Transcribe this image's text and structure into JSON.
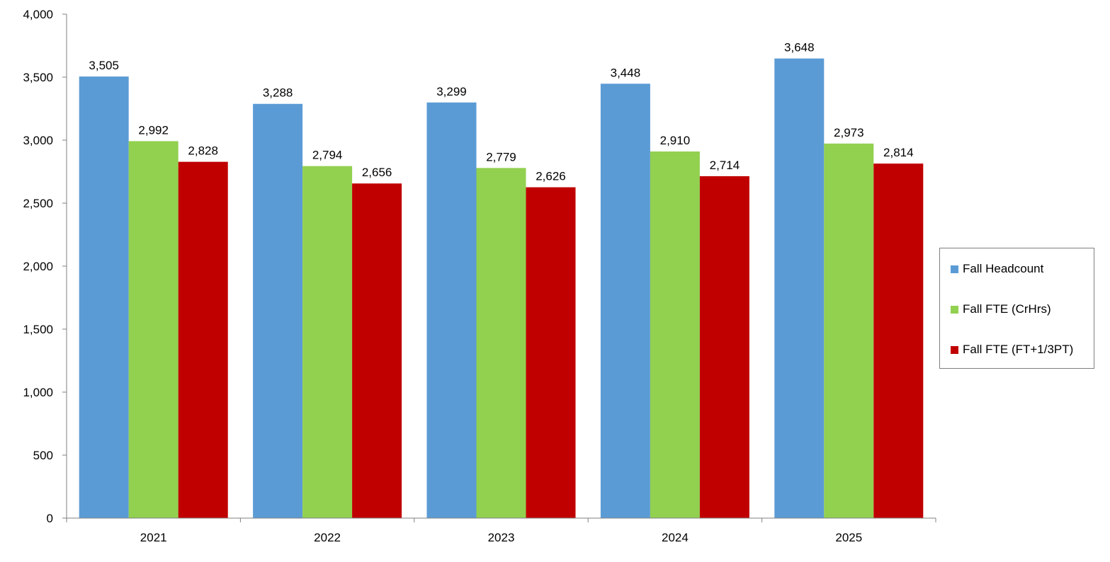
{
  "chart_data": {
    "type": "bar",
    "categories": [
      "2021",
      "2022",
      "2023",
      "2024",
      "2025"
    ],
    "series": [
      {
        "name": "Fall Headcount",
        "color": "#5b9bd5",
        "values": [
          3505,
          3288,
          3299,
          3448,
          3648
        ],
        "labels": [
          "3,505",
          "3,288",
          "3,299",
          "3,448",
          "3,648"
        ]
      },
      {
        "name": "Fall FTE (CrHrs)",
        "color": "#92d050",
        "values": [
          2992,
          2794,
          2779,
          2910,
          2973
        ],
        "labels": [
          "2,992",
          "2,794",
          "2,779",
          "2,910",
          "2,973"
        ]
      },
      {
        "name": "Fall FTE (FT+1/3PT)",
        "color": "#c00000",
        "values": [
          2828,
          2656,
          2626,
          2714,
          2814
        ],
        "labels": [
          "2,828",
          "2,656",
          "2,626",
          "2,714",
          "2,814"
        ]
      }
    ],
    "ylim": [
      0,
      4000
    ],
    "yticks": [
      0,
      500,
      1000,
      1500,
      2000,
      2500,
      3000,
      3500,
      4000
    ],
    "ytick_labels": [
      "0",
      "500",
      "1,000",
      "1,500",
      "2,000",
      "2,500",
      "3,000",
      "3,500",
      "4,000"
    ],
    "grid": false,
    "legend_position": "right"
  }
}
